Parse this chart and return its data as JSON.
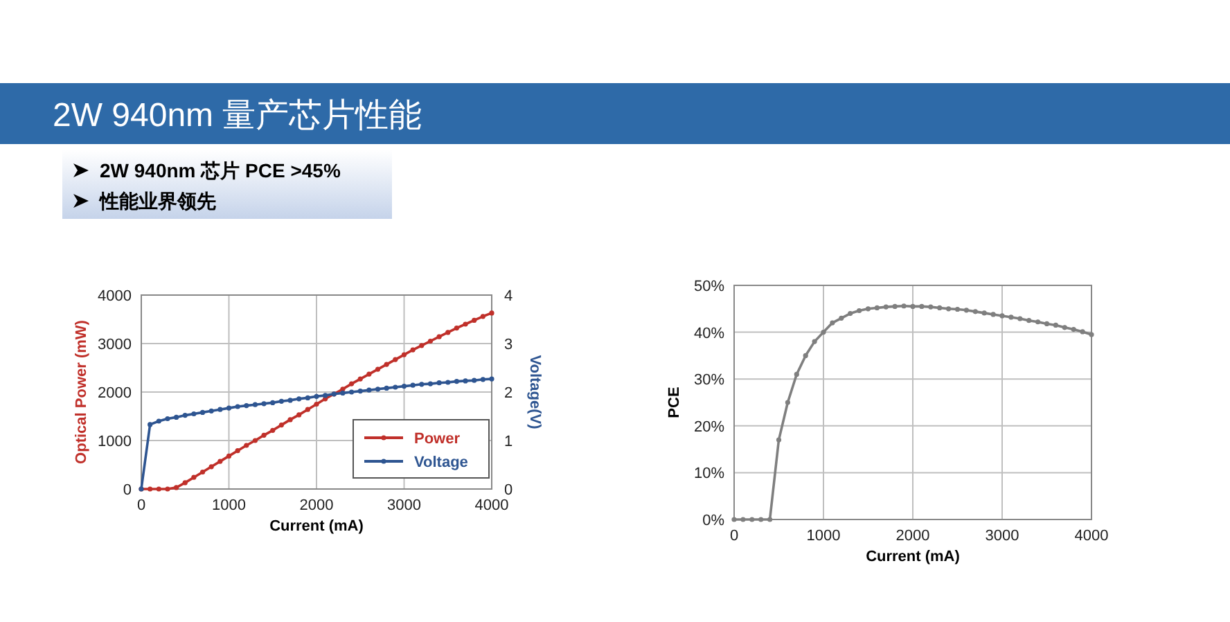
{
  "chart_data": [
    {
      "type": "other",
      "title": "2W 940nm 量产芯片性能",
      "annotations": [
        "2W 940nm 芯片 PCE >45%",
        "性能业界领先"
      ]
    },
    {
      "type": "line",
      "xlabel": "Current (mA)",
      "ylabel": "Optical Power (mW)",
      "y2label": "Voltage(V)",
      "x": [
        0,
        100,
        200,
        300,
        400,
        500,
        600,
        700,
        800,
        900,
        1000,
        1100,
        1200,
        1300,
        1400,
        1500,
        1600,
        1700,
        1800,
        1900,
        2000,
        2100,
        2200,
        2300,
        2400,
        2500,
        2600,
        2700,
        2800,
        2900,
        3000,
        3100,
        3200,
        3300,
        3400,
        3500,
        3600,
        3700,
        3800,
        3900,
        4000
      ],
      "xlim": [
        0,
        4000
      ],
      "xticks": [
        0,
        1000,
        2000,
        3000,
        4000
      ],
      "ylim": [
        0,
        4000
      ],
      "yticks": [
        0,
        1000,
        2000,
        3000,
        4000
      ],
      "y2lim": [
        0,
        4
      ],
      "y2ticks": [
        0,
        1,
        2,
        3,
        4
      ],
      "grid": true,
      "legend": "bottom right",
      "marker": "circle",
      "line_style": "solid",
      "series": [
        {
          "name": "Power",
          "color": "#c0302a",
          "values": [
            0,
            0,
            0,
            0,
            30,
            130,
            240,
            350,
            460,
            570,
            680,
            790,
            900,
            1000,
            1110,
            1210,
            1320,
            1430,
            1530,
            1640,
            1750,
            1860,
            1960,
            2060,
            2170,
            2270,
            2370,
            2470,
            2570,
            2670,
            2770,
            2870,
            2960,
            3050,
            3140,
            3230,
            3320,
            3400,
            3480,
            3560,
            3630
          ]
        },
        {
          "name": "Voltage",
          "color": "#2e5591",
          "axis": "y2",
          "values": [
            0,
            1.33,
            1.4,
            1.45,
            1.48,
            1.52,
            1.55,
            1.58,
            1.61,
            1.64,
            1.67,
            1.7,
            1.72,
            1.74,
            1.76,
            1.78,
            1.81,
            1.83,
            1.86,
            1.88,
            1.91,
            1.93,
            1.96,
            1.98,
            2.0,
            2.02,
            2.04,
            2.06,
            2.08,
            2.1,
            2.12,
            2.14,
            2.16,
            2.17,
            2.19,
            2.2,
            2.22,
            2.23,
            2.24,
            2.26,
            2.27
          ]
        }
      ]
    },
    {
      "type": "line",
      "xlabel": "Current (mA)",
      "ylabel": "PCE",
      "x": [
        0,
        100,
        200,
        300,
        400,
        500,
        600,
        700,
        800,
        900,
        1000,
        1100,
        1200,
        1300,
        1400,
        1500,
        1600,
        1700,
        1800,
        1900,
        2000,
        2100,
        2200,
        2300,
        2400,
        2500,
        2600,
        2700,
        2800,
        2900,
        3000,
        3100,
        3200,
        3300,
        3400,
        3500,
        3600,
        3700,
        3800,
        3900,
        4000
      ],
      "xlim": [
        0,
        4000
      ],
      "xticks": [
        0,
        1000,
        2000,
        3000,
        4000
      ],
      "ylim": [
        0,
        50
      ],
      "yticks": [
        {
          "value": 0,
          "label": "0%"
        },
        {
          "value": 10,
          "label": "10%"
        },
        {
          "value": 20,
          "label": "20%"
        },
        {
          "value": 30,
          "label": "30%"
        },
        {
          "value": 40,
          "label": "40%"
        },
        {
          "value": 50,
          "label": "50%"
        }
      ],
      "grid": true,
      "marker": "circle",
      "line_style": "solid",
      "series": [
        {
          "color": "#7f7f7f",
          "values": [
            0,
            0,
            0,
            0,
            0,
            17,
            25,
            31,
            35,
            38,
            40,
            42,
            43,
            44,
            44.6,
            45,
            45.2,
            45.4,
            45.5,
            45.6,
            45.5,
            45.5,
            45.4,
            45.2,
            45,
            44.9,
            44.7,
            44.4,
            44.1,
            43.8,
            43.5,
            43.2,
            42.9,
            42.5,
            42.2,
            41.8,
            41.5,
            41,
            40.6,
            40.1,
            39.5
          ]
        }
      ]
    }
  ]
}
